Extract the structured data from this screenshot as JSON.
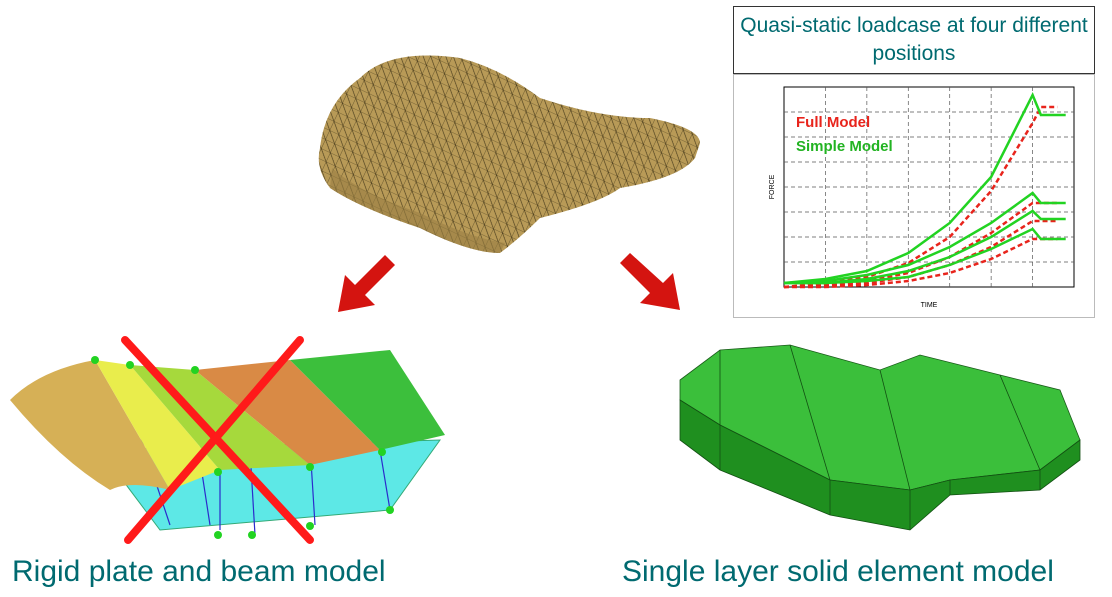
{
  "captions": {
    "left": "Rigid plate and beam model",
    "right": "Single layer solid element model"
  },
  "chart_data": {
    "type": "line",
    "title": "Quasi-static loadcase at four different positions",
    "xlabel": "TIME",
    "ylabel": "FORCE",
    "grid": true,
    "legend_position": "top-left",
    "series": [
      {
        "name": "Full Model",
        "color": "#e8241c",
        "style": "dashed",
        "curves": [
          [
            [
              0,
              0.0
            ],
            [
              1,
              0.02
            ],
            [
              2,
              0.05
            ],
            [
              3,
              0.12
            ],
            [
              4,
              0.25
            ],
            [
              5,
              0.48
            ],
            [
              6,
              0.82
            ],
            [
              6.2,
              0.9
            ],
            [
              6.6,
              0.9
            ]
          ],
          [
            [
              0,
              0.0
            ],
            [
              1,
              0.01
            ],
            [
              2,
              0.03
            ],
            [
              3,
              0.07
            ],
            [
              4,
              0.15
            ],
            [
              5,
              0.27
            ],
            [
              6,
              0.42
            ],
            [
              6.6,
              0.42
            ]
          ],
          [
            [
              0,
              0.0
            ],
            [
              1,
              0.01
            ],
            [
              2,
              0.02
            ],
            [
              3,
              0.05
            ],
            [
              4,
              0.11
            ],
            [
              5,
              0.2
            ],
            [
              6,
              0.33
            ],
            [
              6.6,
              0.33
            ]
          ],
          [
            [
              0,
              0.0
            ],
            [
              1,
              0.0
            ],
            [
              2,
              0.01
            ],
            [
              3,
              0.03
            ],
            [
              4,
              0.07
            ],
            [
              5,
              0.14
            ],
            [
              6,
              0.24
            ],
            [
              6.6,
              0.24
            ]
          ]
        ]
      },
      {
        "name": "Simple Model",
        "color": "#22d322",
        "style": "solid",
        "curves": [
          [
            [
              0,
              0.02
            ],
            [
              1,
              0.04
            ],
            [
              2,
              0.08
            ],
            [
              3,
              0.17
            ],
            [
              4,
              0.32
            ],
            [
              5,
              0.55
            ],
            [
              6,
              0.96
            ],
            [
              6.2,
              0.86
            ],
            [
              6.8,
              0.86
            ]
          ],
          [
            [
              0,
              0.02
            ],
            [
              1,
              0.03
            ],
            [
              2,
              0.06
            ],
            [
              3,
              0.11
            ],
            [
              4,
              0.2
            ],
            [
              5,
              0.32
            ],
            [
              6,
              0.47
            ],
            [
              6.2,
              0.42
            ],
            [
              6.8,
              0.42
            ]
          ],
          [
            [
              0,
              0.02
            ],
            [
              1,
              0.02
            ],
            [
              2,
              0.04
            ],
            [
              3,
              0.08
            ],
            [
              4,
              0.15
            ],
            [
              5,
              0.25
            ],
            [
              6,
              0.38
            ],
            [
              6.2,
              0.34
            ],
            [
              6.8,
              0.34
            ]
          ],
          [
            [
              0,
              0.02
            ],
            [
              1,
              0.02
            ],
            [
              2,
              0.03
            ],
            [
              3,
              0.05
            ],
            [
              4,
              0.11
            ],
            [
              5,
              0.19
            ],
            [
              6,
              0.29
            ],
            [
              6.2,
              0.24
            ],
            [
              6.8,
              0.24
            ]
          ]
        ]
      }
    ],
    "xlim": [
      0,
      7
    ],
    "ylim": [
      0,
      1
    ]
  }
}
